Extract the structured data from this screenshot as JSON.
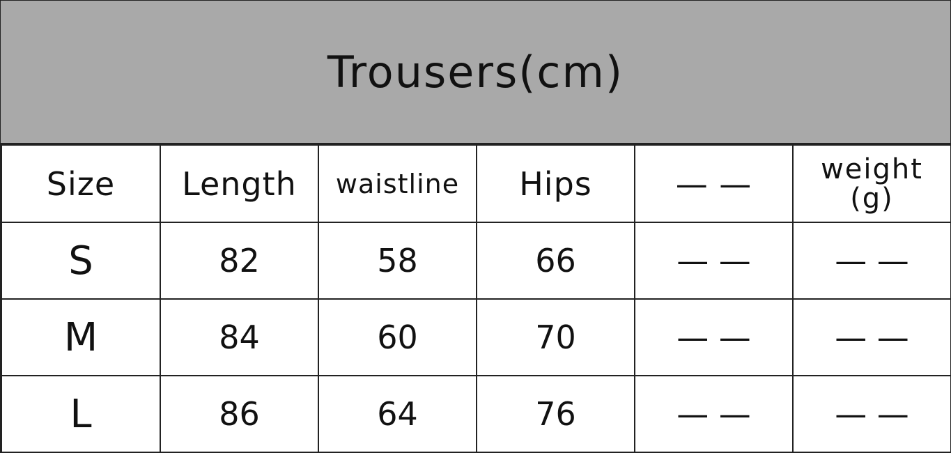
{
  "title": "Trousers(cm)",
  "headers": [
    "Size",
    "Length",
    "waistline",
    "Hips",
    "— —",
    "weight\n(g)"
  ],
  "header_weight_line1": "weight",
  "header_weight_line2": "(g)",
  "rows": [
    [
      "S",
      "82",
      "58",
      "66",
      "— —",
      "— —"
    ],
    [
      "M",
      "84",
      "60",
      "70",
      "— —",
      "— —"
    ],
    [
      "L",
      "86",
      "64",
      "76",
      "— —",
      "— —"
    ]
  ],
  "colors": {
    "header_background": "#a9a9a9",
    "border": "#222222"
  }
}
